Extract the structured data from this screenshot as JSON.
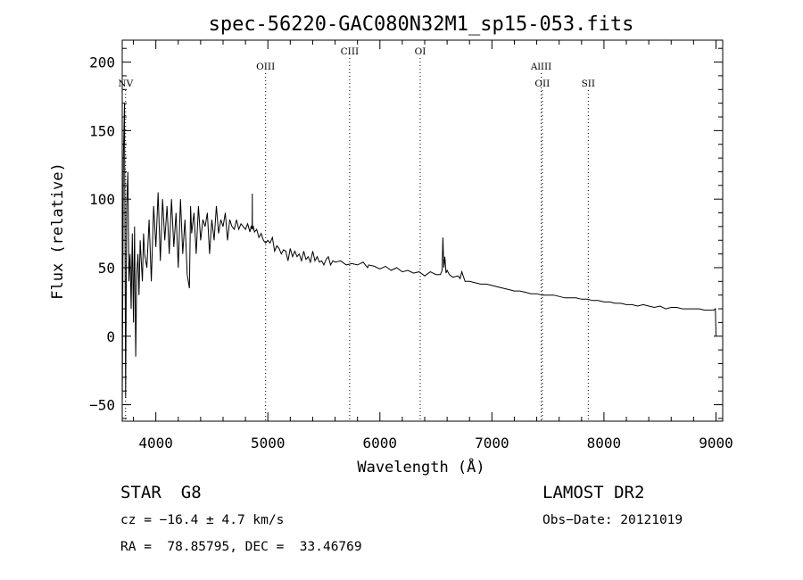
{
  "chart_data": {
    "type": "line",
    "title": "spec-56220-GAC080N32M1_sp15-053.fits",
    "xlabel": "Wavelength (Å)",
    "ylabel": "Flux (relative)",
    "xlim": [
      3700,
      9060
    ],
    "ylim": [
      -62,
      216
    ],
    "xticks": [
      4000,
      5000,
      6000,
      7000,
      8000,
      9000
    ],
    "yticks": [
      -50,
      0,
      50,
      100,
      150,
      200
    ],
    "grid": false,
    "series": [
      {
        "name": "spectrum",
        "x": [
          3700,
          3710,
          3720,
          3730,
          3740,
          3750,
          3760,
          3770,
          3780,
          3790,
          3800,
          3810,
          3820,
          3830,
          3840,
          3850,
          3860,
          3870,
          3880,
          3890,
          3900,
          3920,
          3940,
          3960,
          3980,
          4000,
          4020,
          4040,
          4060,
          4080,
          4100,
          4120,
          4140,
          4160,
          4180,
          4200,
          4220,
          4240,
          4260,
          4280,
          4300,
          4310,
          4320,
          4340,
          4360,
          4380,
          4400,
          4420,
          4440,
          4460,
          4480,
          4500,
          4520,
          4540,
          4560,
          4580,
          4600,
          4620,
          4640,
          4660,
          4680,
          4700,
          4720,
          4740,
          4760,
          4780,
          4800,
          4820,
          4840,
          4850,
          4860,
          4861,
          4862,
          4870,
          4880,
          4900,
          4920,
          4940,
          4960,
          4980,
          5000,
          5020,
          5040,
          5060,
          5080,
          5100,
          5120,
          5140,
          5160,
          5180,
          5200,
          5220,
          5240,
          5260,
          5280,
          5300,
          5320,
          5340,
          5360,
          5380,
          5400,
          5420,
          5440,
          5460,
          5480,
          5500,
          5520,
          5540,
          5560,
          5580,
          5600,
          5650,
          5700,
          5750,
          5800,
          5850,
          5890,
          5900,
          5950,
          6000,
          6050,
          6100,
          6150,
          6200,
          6250,
          6300,
          6350,
          6400,
          6450,
          6500,
          6540,
          6555,
          6562,
          6570,
          6580,
          6590,
          6600,
          6620,
          6650,
          6700,
          6716,
          6731,
          6760,
          6800,
          6850,
          6900,
          6950,
          7000,
          7050,
          7100,
          7150,
          7200,
          7250,
          7300,
          7350,
          7400,
          7450,
          7500,
          7550,
          7600,
          7650,
          7700,
          7750,
          7800,
          7850,
          7900,
          7950,
          8000,
          8050,
          8100,
          8150,
          8200,
          8250,
          8300,
          8350,
          8400,
          8450,
          8500,
          8550,
          8600,
          8650,
          8700,
          8750,
          8800,
          8850,
          8900,
          8950,
          8980,
          8995,
          9000
        ],
        "y": [
          -50,
          130,
          170,
          -45,
          95,
          120,
          40,
          60,
          20,
          75,
          10,
          80,
          -15,
          45,
          60,
          30,
          70,
          55,
          40,
          75,
          60,
          50,
          85,
          40,
          95,
          65,
          105,
          55,
          100,
          70,
          95,
          60,
          100,
          65,
          90,
          50,
          100,
          60,
          85,
          45,
          35,
          95,
          75,
          90,
          60,
          95,
          70,
          85,
          80,
          90,
          60,
          85,
          70,
          95,
          75,
          85,
          80,
          90,
          70,
          85,
          80,
          78,
          85,
          78,
          82,
          80,
          78,
          82,
          76,
          80,
          78,
          104,
          78,
          80,
          76,
          78,
          72,
          75,
          70,
          68,
          70,
          68,
          72,
          62,
          66,
          64,
          60,
          63,
          62,
          55,
          64,
          58,
          62,
          58,
          60,
          55,
          62,
          56,
          58,
          54,
          62,
          55,
          58,
          54,
          55,
          52,
          56,
          58,
          52,
          55,
          54,
          55,
          52,
          53,
          52,
          54,
          50,
          52,
          51,
          49,
          51,
          48,
          50,
          47,
          48,
          46,
          47,
          44,
          47,
          45,
          45,
          48,
          72,
          50,
          58,
          46,
          48,
          45,
          43,
          44,
          42,
          47,
          40,
          40,
          39,
          38,
          38,
          37,
          36,
          35,
          34,
          33,
          33,
          32,
          31,
          31,
          30,
          30,
          30,
          29,
          28,
          28,
          28,
          27,
          27,
          26,
          26,
          25,
          25,
          24,
          24,
          23,
          23,
          22,
          23,
          22,
          21,
          22,
          20,
          21,
          21,
          20,
          20,
          20,
          20,
          19,
          19,
          19,
          20,
          0
        ]
      }
    ],
    "annotations": [
      {
        "label": "NV",
        "x": 3730,
        "level": 2
      },
      {
        "label": "OIII",
        "x": 4980,
        "level": 1
      },
      {
        "label": "CIII",
        "x": 5730,
        "level": 0
      },
      {
        "label": "OI",
        "x": 6360,
        "level": 0
      },
      {
        "label": "AlIII",
        "x": 7440,
        "level": 1
      },
      {
        "label": "OII",
        "x": 7450,
        "level": 2
      },
      {
        "label": "SII",
        "x": 7860,
        "level": 2
      }
    ]
  },
  "info": {
    "object": "STAR",
    "subclass": "G8",
    "survey": "LAMOST DR2",
    "redshift": "cz = −16.4 ± 4.7 km/s",
    "obs_date": "Obs−Date: 20121019",
    "coords": "RA =  78.85795, DEC =  33.46769"
  }
}
